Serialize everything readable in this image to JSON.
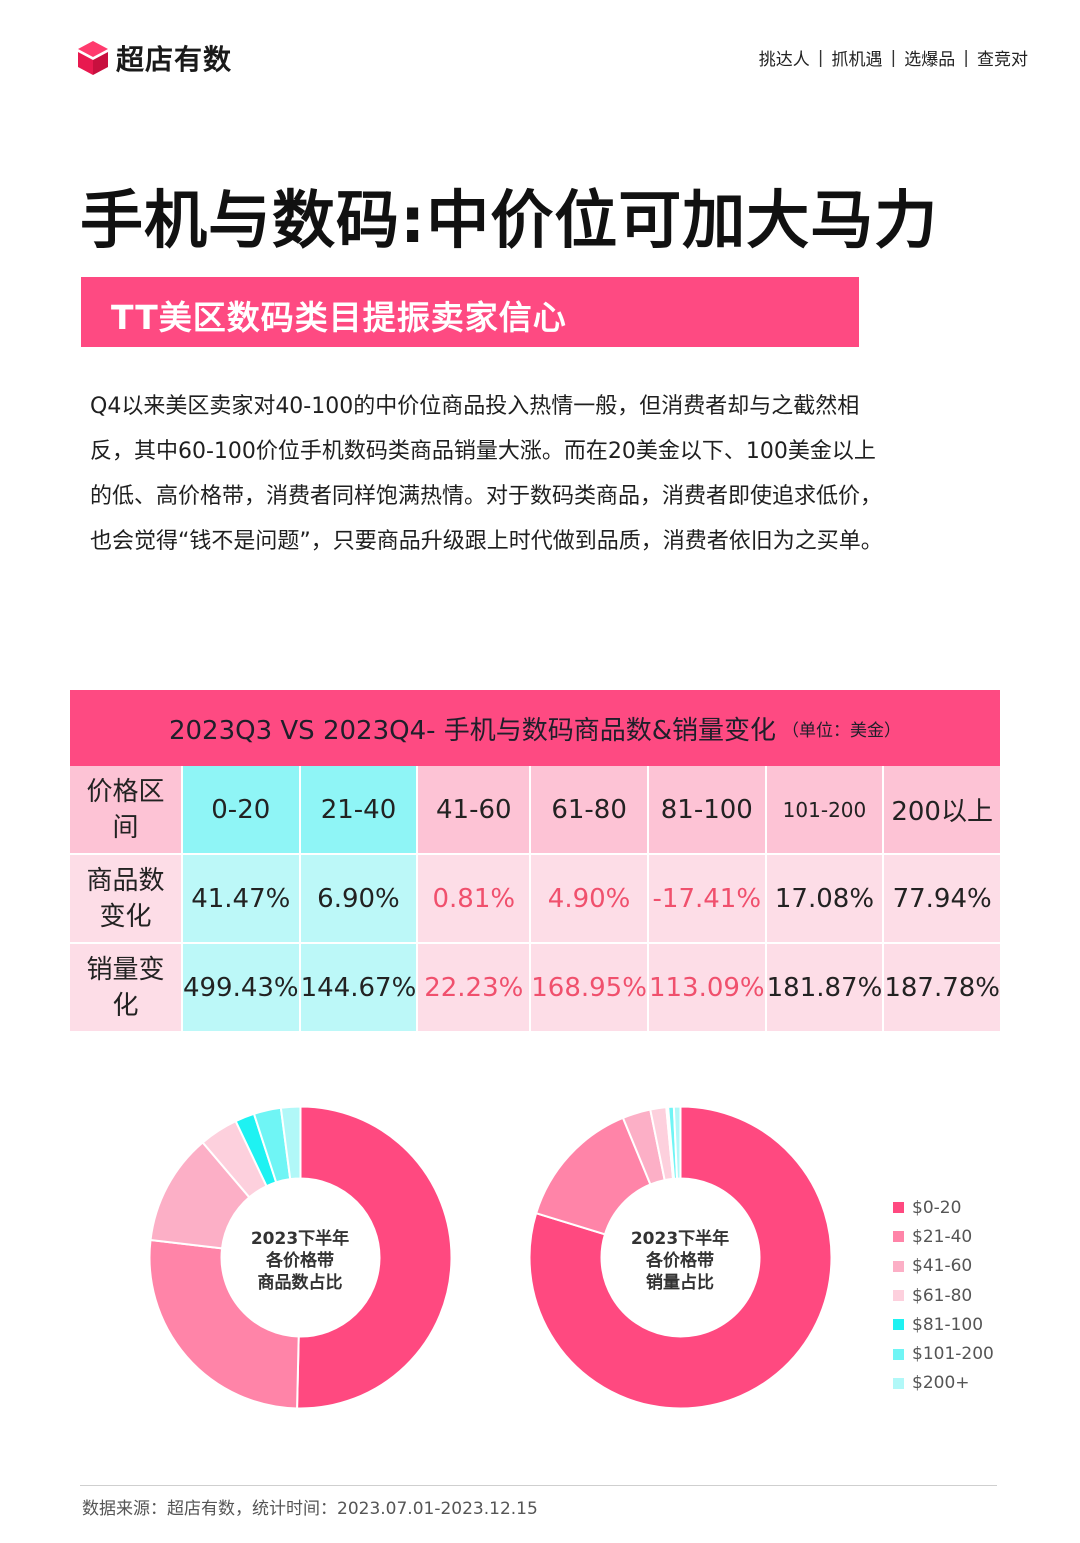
{
  "brand": {
    "name": "超店有数"
  },
  "nav": [
    "挑达人",
    "抓机遇",
    "选爆品",
    "查竞对"
  ],
  "title": "手机与数码:中价位可加大马力",
  "subtitle": "TT美区数码类目提振卖家信心",
  "paragraph": [
    "Q4以来美区卖家对40-100的中价位商品投入热情一般，但消费者却与之截然相",
    "反，其中60-100价位手机数码类商品销量大涨。而在20美金以下、100美金以上",
    "的低、高价格带，消费者同样饱满热情。对于数码类商品，消费者即使追求低价，",
    "也会觉得“钱不是问题”，只要商品升级跟上时代做到品质，消费者依旧为之买单。"
  ],
  "table": {
    "title": "2023Q3 VS 2023Q4- 手机与数码商品数&销量变化",
    "unit": "（单位：美金）",
    "header": [
      "价格区间",
      "0-20",
      "21-40",
      "41-60",
      "61-80",
      "81-100",
      "101-200",
      "200以上"
    ],
    "rows": [
      [
        "商品数变化",
        "41.47%",
        "6.90%",
        "0.81%",
        "4.90%",
        "-17.41%",
        "17.08%",
        "77.94%"
      ],
      [
        "销量变化",
        "499.43%",
        "144.67%",
        "22.23%",
        "168.95%",
        "113.09%",
        "181.87%",
        "187.78%"
      ]
    ]
  },
  "chart_data": [
    {
      "type": "pie",
      "title": "2023下半年各价格带商品数占比",
      "categories": [
        "$0-20",
        "$21-40",
        "$41-60",
        "$61-80",
        "$81-100",
        "$101-200",
        "$200+"
      ],
      "values": [
        48.5,
        25.5,
        11.5,
        4.0,
        2.0,
        2.8,
        2.0
      ],
      "colors": [
        "#ff4980",
        "#ff84a8",
        "#fcafc6",
        "#fdd0dd",
        "#1ef2f2",
        "#6ff5f5",
        "#b1f8f8"
      ]
    },
    {
      "type": "pie",
      "title": "2023下半年各价格带销量占比",
      "categories": [
        "$0-20",
        "$21-40",
        "$41-60",
        "$61-80",
        "$81-100",
        "$101-200",
        "$200+"
      ],
      "values": [
        79.5,
        14.0,
        3.0,
        1.7,
        0.2,
        0.6,
        0.7
      ],
      "colors": [
        "#ff4980",
        "#ff84a8",
        "#fcafc6",
        "#fdd0dd",
        "#1ef2f2",
        "#6ff5f5",
        "#b1f8f8"
      ]
    }
  ],
  "donut_labels": [
    [
      "2023下半年",
      "各价格带",
      "商品数占比"
    ],
    [
      "2023下半年",
      "各价格带",
      "销量占比"
    ]
  ],
  "footer": "数据来源：超店有数，统计时间：2023.07.01-2023.12.15"
}
